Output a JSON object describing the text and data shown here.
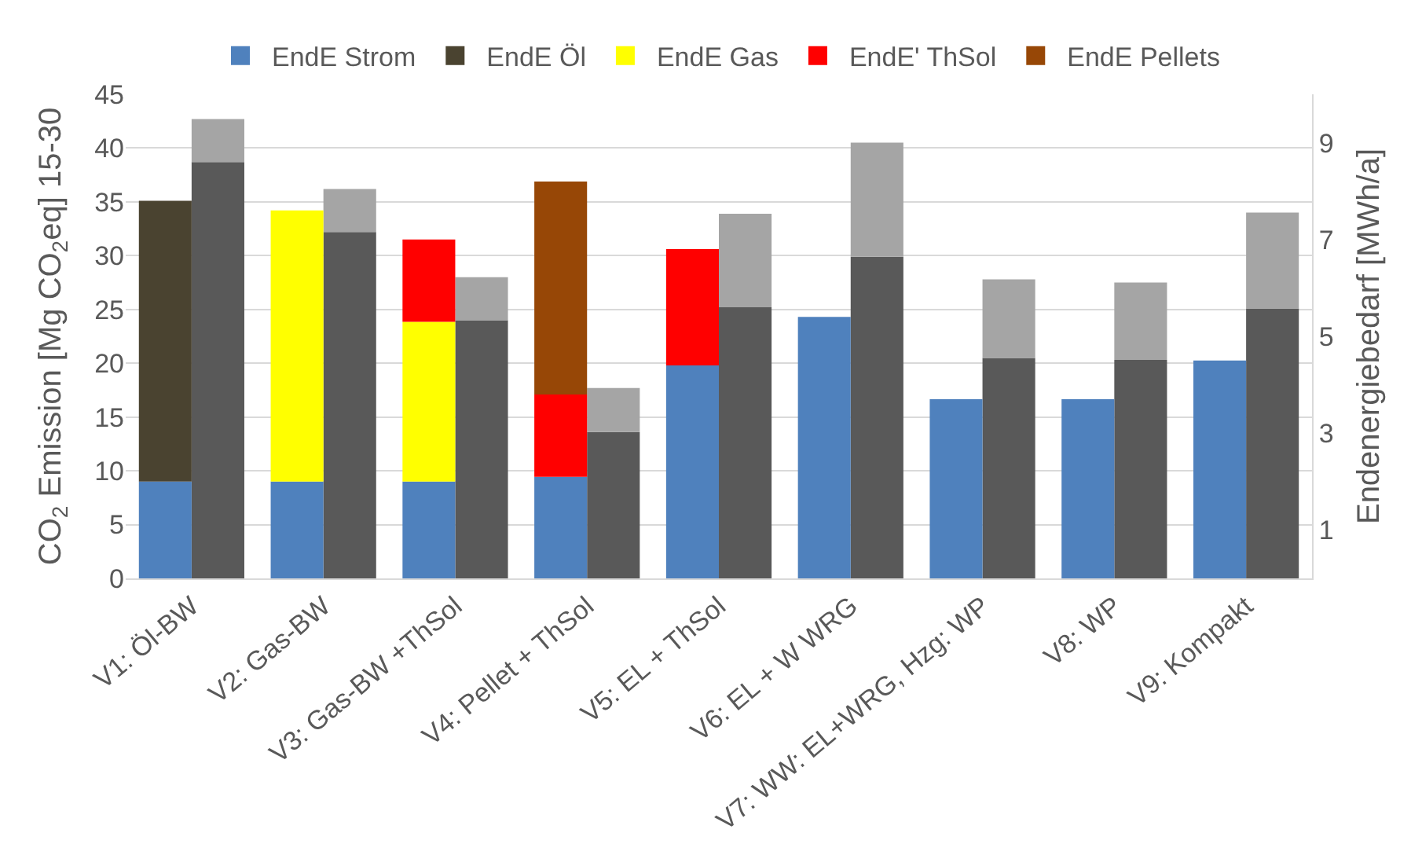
{
  "chart_data": {
    "type": "bar",
    "stacked": true,
    "ylabel": "CO$_{2}$ Emission [Mg CO$_{2}$eq] 15-30",
    "y2label": "Endenergiebedarf [MWh/a]",
    "categories": [
      "V1: Öl-BW",
      "V2: Gas-BW",
      "V3: Gas-BW +ThSol",
      "V4: Pellet + ThSol",
      "V5: EL + ThSol",
      "V6: EL + W WRG",
      "V7: WW: EL+WRG, Hzg: WP",
      "V8: WP",
      "V9: Kompakt"
    ],
    "series": [
      {
        "name": "EndE Strom",
        "color": "#4f81bd",
        "axis": "y2",
        "values": [
          2.0,
          2.0,
          2.0,
          2.1,
          4.4,
          5.4,
          3.7,
          3.7,
          4.5
        ]
      },
      {
        "name": "EndE Öl",
        "color": "#4a4330",
        "axis": "y2",
        "values": [
          5.8,
          null,
          null,
          null,
          null,
          null,
          null,
          null,
          null
        ]
      },
      {
        "name": "EndE Gas",
        "color": "#ffff00",
        "axis": "y2",
        "values": [
          null,
          5.6,
          3.3,
          null,
          null,
          null,
          null,
          null,
          null
        ]
      },
      {
        "name": "EndE' ThSol",
        "color": "#ff0000",
        "axis": "y2",
        "values": [
          null,
          null,
          1.7,
          1.7,
          2.4,
          null,
          null,
          null,
          null
        ]
      },
      {
        "name": "EndE Pellets",
        "color": "#974706",
        "axis": "y2",
        "values": [
          null,
          null,
          null,
          4.4,
          null,
          null,
          null,
          null,
          null
        ]
      },
      {
        "color": "#595959",
        "axis": "y",
        "values": [
          38.7,
          32.2,
          24.0,
          13.6,
          25.2,
          29.9,
          20.5,
          20.3,
          25.1
        ]
      },
      {
        "color": "#a5a5a5",
        "axis": "y",
        "values": [
          4.0,
          4.0,
          4.0,
          4.1,
          8.7,
          10.6,
          7.3,
          7.2,
          8.9
        ]
      }
    ],
    "ylim": [
      0,
      45
    ],
    "yticks": [
      0,
      5,
      10,
      15,
      20,
      25,
      30,
      35,
      40,
      45
    ],
    "y2lim": [
      0,
      10
    ],
    "y2ticks": [
      1,
      3,
      5,
      7,
      9
    ],
    "grid": "y",
    "legend": "top"
  }
}
